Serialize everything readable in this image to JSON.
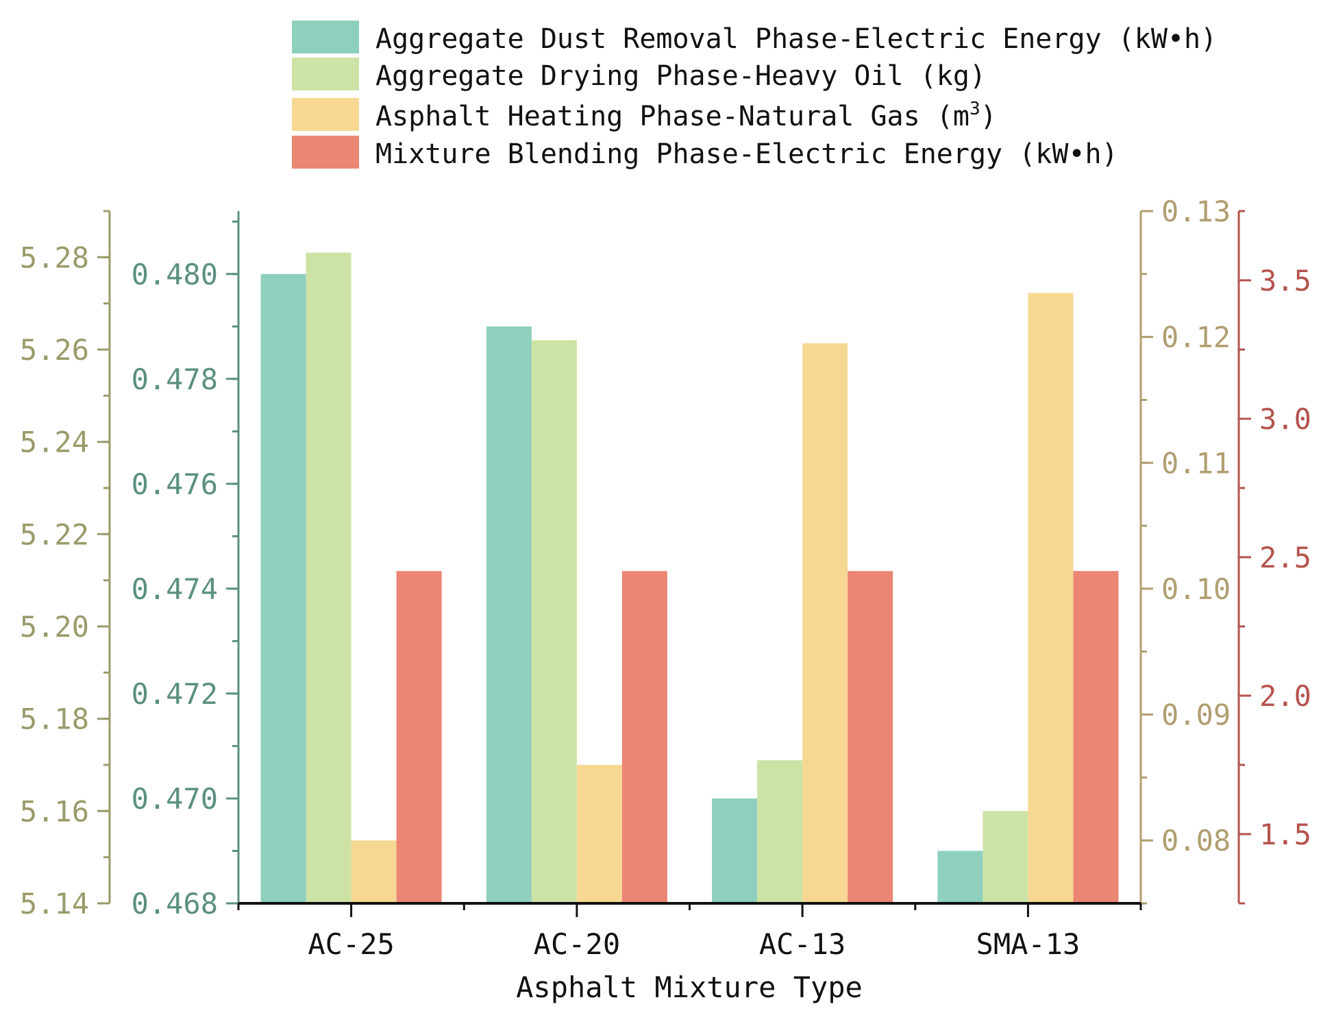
{
  "chart_data": {
    "type": "bar",
    "xlabel": "Asphalt Mixture Type",
    "categories": [
      "AC-25",
      "AC-20",
      "AC-13",
      "SMA-13"
    ],
    "series": [
      {
        "name": "Aggregate Dust Removal Phase-Electric Energy (kW•h)",
        "legend_parts": [
          "Aggregate Dust Removal Phase-Electric Energy (kW•h)"
        ],
        "axis": "left_inner",
        "color": "#8ecfbe",
        "values": [
          0.48,
          0.479,
          0.47,
          0.469
        ]
      },
      {
        "name": "Aggregate Drying Phase-Heavy Oil (kg)",
        "legend_parts": [
          "Aggregate Drying Phase-Heavy Oil (kg)"
        ],
        "axis": "left_outer",
        "color": "#cde3a6",
        "values": [
          5.281,
          5.262,
          5.171,
          5.16
        ]
      },
      {
        "name": "Asphalt Heating Phase-Natural Gas (m3)",
        "legend_parts": [
          "Asphalt Heating Phase-Natural Gas (m",
          "3",
          ")"
        ],
        "axis": "right_inner",
        "color": "#f6d893",
        "values": [
          0.08,
          0.086,
          0.1195,
          0.1235
        ]
      },
      {
        "name": "Mixture Blending Phase-Electric Energy (kW•h)",
        "legend_parts": [
          "Mixture Blending Phase-Electric Energy (kW•h)"
        ],
        "axis": "right_outer",
        "color": "#eb8574",
        "values": [
          2.45,
          2.45,
          2.45,
          2.45
        ]
      }
    ],
    "axes": {
      "left_outer": {
        "range": [
          5.14,
          5.29
        ],
        "ticks": [
          5.14,
          5.16,
          5.18,
          5.2,
          5.22,
          5.24,
          5.26,
          5.28
        ],
        "tick_labels": [
          "5.14",
          "5.16",
          "5.18",
          "5.20",
          "5.22",
          "5.24",
          "5.26",
          "5.28"
        ],
        "minor_step": 0.01,
        "color": "#9a9a6a"
      },
      "left_inner": {
        "range": [
          0.468,
          0.4812
        ],
        "ticks": [
          0.468,
          0.47,
          0.472,
          0.474,
          0.476,
          0.478,
          0.48
        ],
        "tick_labels": [
          "0.468",
          "0.470",
          "0.472",
          "0.474",
          "0.476",
          "0.478",
          "0.480"
        ],
        "minor_step": 0.001,
        "color": "#5b8f82"
      },
      "right_inner": {
        "range": [
          0.075,
          0.13
        ],
        "ticks": [
          0.08,
          0.09,
          0.1,
          0.11,
          0.12,
          0.13
        ],
        "tick_labels": [
          "0.08",
          "0.09",
          "0.10",
          "0.11",
          "0.12",
          "0.13"
        ],
        "minor_step": 0.005,
        "color": "#b09e70"
      },
      "right_outer": {
        "range": [
          1.25,
          3.75
        ],
        "ticks": [
          1.5,
          2.0,
          2.5,
          3.0,
          3.5
        ],
        "tick_labels": [
          "1.5",
          "2.0",
          "2.5",
          "3.0",
          "3.5"
        ],
        "minor_step": 0.25,
        "color": "#b5534d"
      }
    },
    "legend_position": "top"
  }
}
